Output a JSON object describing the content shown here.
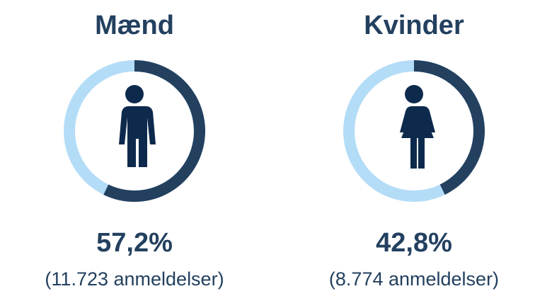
{
  "chart_data": {
    "type": "donut",
    "categories": [
      "Mænd",
      "Kvinder"
    ],
    "values": [
      57.2,
      42.8
    ],
    "value_labels": [
      "57,2%",
      "42,8%"
    ],
    "annotations": [
      "(11.723 anmeldelser)",
      "(8.774 anmeldelser)"
    ],
    "color": "#23405f",
    "track_color": "#b3dcf7"
  }
}
